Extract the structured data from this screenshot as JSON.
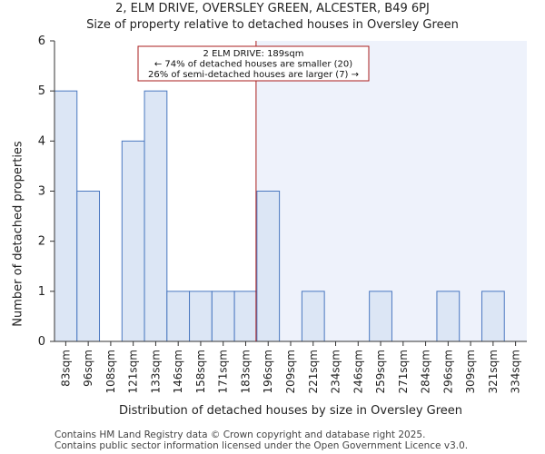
{
  "title_line1": "2, ELM DRIVE, OVERSLEY GREEN, ALCESTER, B49 6PJ",
  "title_line2": "Size of property relative to detached houses in Oversley Green",
  "footer_line1": "Contains HM Land Registry data © Crown copyright and database right 2025.",
  "footer_line2": "Contains public sector information licensed under the Open Government Licence v3.0.",
  "chart_data": {
    "type": "bar",
    "title": "Size of property relative to detached houses in Oversley Green",
    "xlabel": "Distribution of detached houses by size in Oversley Green",
    "ylabel": "Number of detached properties",
    "categories": [
      "83sqm",
      "96sqm",
      "108sqm",
      "121sqm",
      "133sqm",
      "146sqm",
      "158sqm",
      "171sqm",
      "183sqm",
      "196sqm",
      "209sqm",
      "221sqm",
      "234sqm",
      "246sqm",
      "259sqm",
      "271sqm",
      "284sqm",
      "296sqm",
      "309sqm",
      "321sqm",
      "334sqm"
    ],
    "values": [
      5,
      3,
      0,
      4,
      5,
      1,
      1,
      1,
      1,
      3,
      0,
      1,
      0,
      0,
      1,
      0,
      0,
      1,
      0,
      1,
      0
    ],
    "ylim": [
      0,
      6
    ],
    "yticks": [
      0,
      1,
      2,
      3,
      4,
      5,
      6
    ],
    "property_marker": {
      "value_sqm": 189
    },
    "annotation": [
      "2 ELM DRIVE: 189sqm",
      "← 74% of detached houses are smaller (20)",
      "26% of semi-detached houses are larger (7) →"
    ],
    "colors": {
      "bar_fill": "#dce6f5",
      "bar_stroke": "#4a78c0",
      "marker": "#aa1c1c",
      "highlight_region": "#eef2fb"
    }
  }
}
